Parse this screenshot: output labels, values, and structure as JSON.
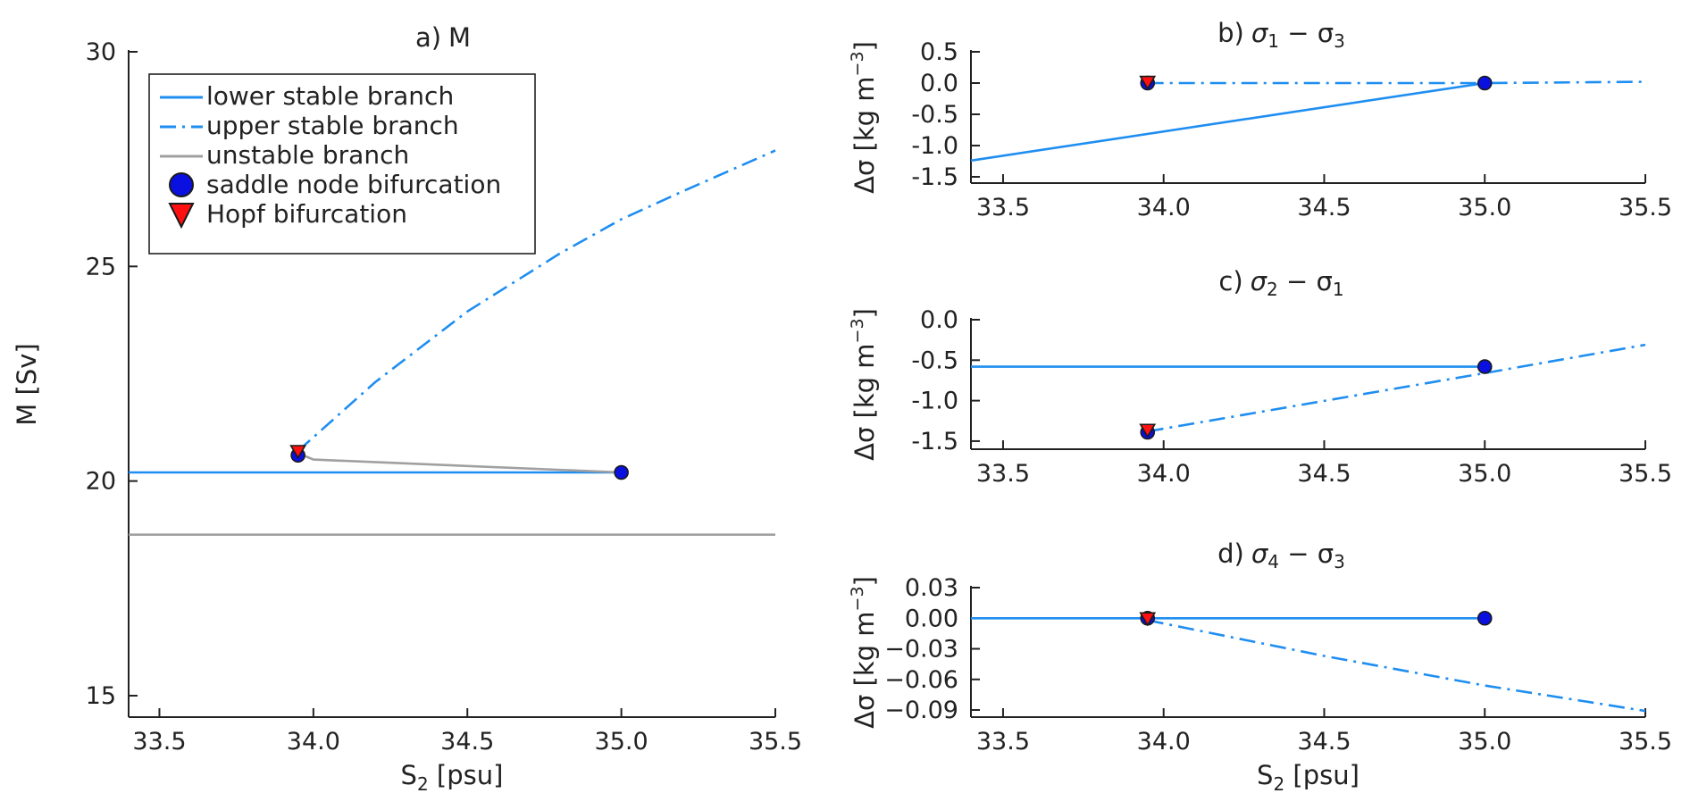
{
  "colors": {
    "stable": "#1f8ef1",
    "unstable": "#a0a0a0",
    "saddle_fill": "#0a10e0",
    "hopf_fill": "#ff1010",
    "marker_edge": "#1a1a1a"
  },
  "legend": {
    "lower": "lower stable branch",
    "upper": "upper stable branch",
    "unstable": "unstable branch",
    "saddle": "saddle node bifurcation",
    "hopf": "Hopf bifurcation"
  },
  "chart_data": [
    {
      "id": "a",
      "type": "line",
      "title_prefix": "a)",
      "title_main": "M",
      "xlabel_main": "S",
      "xlabel_sub": "2",
      "xlabel_rest": " [psu]",
      "ylabel": "M [Sv]",
      "xlim": [
        33.4,
        35.5
      ],
      "ylim": [
        14.5,
        30
      ],
      "xticks": [
        "33.5",
        "34.0",
        "34.5",
        "35.0",
        "35.5"
      ],
      "yticks": [
        "15",
        "20",
        "25",
        "30"
      ],
      "series": [
        {
          "name": "lower stable branch",
          "style": "solid",
          "x": [
            33.4,
            35.0
          ],
          "y": [
            20.2,
            20.2
          ]
        },
        {
          "name": "upper stable branch",
          "style": "dashdot",
          "x": [
            33.95,
            34.2,
            34.5,
            34.8,
            35.0,
            35.2,
            35.5
          ],
          "y": [
            20.7,
            22.3,
            23.95,
            25.3,
            26.1,
            26.75,
            27.7
          ]
        },
        {
          "name": "unstable branch",
          "style": "unstable",
          "x": [
            33.95,
            34.0,
            35.0
          ],
          "y": [
            20.65,
            20.5,
            20.2
          ]
        },
        {
          "name": "unstable branch",
          "style": "unstable",
          "x": [
            33.4,
            35.5
          ],
          "y": [
            18.75,
            18.75
          ]
        }
      ],
      "saddle_points": [
        {
          "x": 33.95,
          "y": 20.6
        },
        {
          "x": 35.0,
          "y": 20.2
        }
      ],
      "hopf_points": [
        {
          "x": 33.95,
          "y": 20.7
        }
      ]
    },
    {
      "id": "b",
      "type": "line",
      "title_prefix": "b)",
      "title_math": [
        "σ",
        "1",
        " − σ",
        "3"
      ],
      "ylabel_main": "Δσ [kg m",
      "ylabel_sup": "−3",
      "ylabel_end": "]",
      "xlim": [
        33.4,
        35.5
      ],
      "ylim": [
        -1.6,
        0.5
      ],
      "xticks": [
        "33.5",
        "34.0",
        "34.5",
        "35.0",
        "35.5"
      ],
      "yticks": [
        "0.5",
        "0.0",
        "-0.5",
        "-1.0",
        "-1.5"
      ],
      "series": [
        {
          "name": "lower stable branch",
          "style": "solid",
          "x": [
            33.4,
            35.0
          ],
          "y": [
            -1.24,
            0.0
          ]
        },
        {
          "name": "upper stable branch",
          "style": "dashdot",
          "x": [
            33.95,
            35.0,
            35.5
          ],
          "y": [
            0.0,
            0.0,
            0.02
          ]
        }
      ],
      "saddle_points": [
        {
          "x": 33.95,
          "y": 0.0
        },
        {
          "x": 35.0,
          "y": 0.0
        }
      ],
      "hopf_points": [
        {
          "x": 33.95,
          "y": 0.02
        }
      ]
    },
    {
      "id": "c",
      "type": "line",
      "title_prefix": "c)",
      "title_math": [
        "σ",
        "2",
        " − σ",
        "1"
      ],
      "ylabel_main": "Δσ [kg m",
      "ylabel_sup": "−3",
      "ylabel_end": "]",
      "xlim": [
        33.4,
        35.5
      ],
      "ylim": [
        -1.6,
        0.0
      ],
      "xticks": [
        "33.5",
        "34.0",
        "34.5",
        "35.0",
        "35.5"
      ],
      "yticks": [
        "0.0",
        "-0.5",
        "-1.0",
        "-1.5"
      ],
      "series": [
        {
          "name": "lower stable branch",
          "style": "solid",
          "x": [
            33.4,
            35.0
          ],
          "y": [
            -0.58,
            -0.58
          ]
        },
        {
          "name": "upper stable branch",
          "style": "dashdot",
          "x": [
            33.95,
            35.0,
            35.5
          ],
          "y": [
            -1.38,
            -0.66,
            -0.31
          ]
        }
      ],
      "saddle_points": [
        {
          "x": 33.95,
          "y": -1.39
        },
        {
          "x": 35.0,
          "y": -0.58
        }
      ],
      "hopf_points": [
        {
          "x": 33.95,
          "y": -1.36
        }
      ]
    },
    {
      "id": "d",
      "type": "line",
      "title_prefix": "d)",
      "title_math": [
        "σ",
        "4",
        " − σ",
        "3"
      ],
      "ylabel_main": "Δσ [kg m",
      "ylabel_sup": "−3",
      "ylabel_end": "]",
      "xlabel_main": "S",
      "xlabel_sub": "2",
      "xlabel_rest": " [psu]",
      "xlim": [
        33.4,
        35.5
      ],
      "ylim": [
        -0.097,
        0.03
      ],
      "xticks": [
        "33.5",
        "34.0",
        "34.5",
        "35.0",
        "35.5"
      ],
      "yticks": [
        "0.03",
        "0.00",
        "−0.03",
        "−0.06",
        "−0.09"
      ],
      "series": [
        {
          "name": "lower stable branch",
          "style": "solid",
          "x": [
            33.4,
            35.0
          ],
          "y": [
            0.0,
            0.0
          ]
        },
        {
          "name": "upper stable branch",
          "style": "dashdot",
          "x": [
            33.95,
            34.5,
            35.0,
            35.5
          ],
          "y": [
            -0.002,
            -0.037,
            -0.066,
            -0.091
          ]
        }
      ],
      "saddle_points": [
        {
          "x": 33.95,
          "y": 0.0
        },
        {
          "x": 35.0,
          "y": 0.0
        }
      ],
      "hopf_points": [
        {
          "x": 33.95,
          "y": 0.0
        }
      ]
    }
  ]
}
